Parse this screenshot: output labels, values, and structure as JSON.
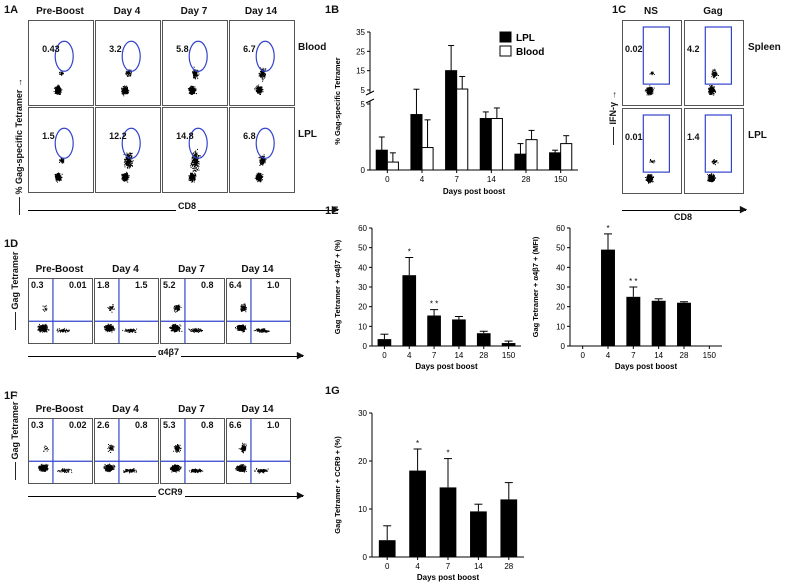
{
  "panel_1A": {
    "label": "1A",
    "columns": [
      "Pre-Boost",
      "Day 4",
      "Day 7",
      "Day 14"
    ],
    "rows": [
      {
        "name": "Blood",
        "values": [
          "0.43",
          "3.2",
          "5.8",
          "6.7"
        ]
      },
      {
        "name": "LPL",
        "values": [
          "1.5",
          "12.2",
          "14.8",
          "6.8"
        ]
      }
    ],
    "ylabel": "% Gag-specific Tetramer",
    "xlabel": "CD8"
  },
  "panel_1C": {
    "label": "1C",
    "columns": [
      "NS",
      "Gag"
    ],
    "rows": [
      {
        "name": "Spleen",
        "values": [
          "0.02",
          "4.2"
        ]
      },
      {
        "name": "LPL",
        "values": [
          "0.01",
          "1.4"
        ]
      }
    ],
    "ylabel": "IFN-γ",
    "xlabel": "CD8"
  },
  "panel_1D": {
    "label": "1D",
    "columns": [
      "Pre-Boost",
      "Day 4",
      "Day 7",
      "Day 14"
    ],
    "quadrants": [
      {
        "ul": "0.3",
        "ur": "0.01"
      },
      {
        "ul": "1.8",
        "ur": "1.5"
      },
      {
        "ul": "5.2",
        "ur": "0.8"
      },
      {
        "ul": "6.4",
        "ur": "1.0"
      }
    ],
    "ylabel": "Gag Tetramer",
    "xlabel": "α4β7"
  },
  "panel_1F": {
    "label": "1F",
    "columns": [
      "Pre-Boost",
      "Day 4",
      "Day 7",
      "Day 14"
    ],
    "quadrants": [
      {
        "ul": "0.3",
        "ur": "0.02"
      },
      {
        "ul": "2.6",
        "ur": "0.8"
      },
      {
        "ul": "5.3",
        "ur": "0.8"
      },
      {
        "ul": "6.6",
        "ur": "1.0"
      }
    ],
    "ylabel": "Gag Tetramer",
    "xlabel": "CCR9"
  },
  "chart_data": [
    {
      "id": "1B",
      "label": "1B",
      "type": "bar",
      "categories": [
        "0",
        "4",
        "7",
        "14",
        "28",
        "150"
      ],
      "series": [
        {
          "name": "LPL",
          "color": "#000000",
          "values": [
            1.5,
            4.2,
            15,
            3.9,
            1.2,
            1.3
          ],
          "errors": [
            1.0,
            1.2,
            13,
            0.5,
            0.8,
            0.2
          ]
        },
        {
          "name": "Blood",
          "color": "#ffffff",
          "values": [
            0.6,
            1.7,
            5.5,
            3.9,
            2.3,
            2.0
          ],
          "errors": [
            0.7,
            2.1,
            6.5,
            0.8,
            0.7,
            0.6
          ]
        }
      ],
      "ylabel": "% Gag-specific Tetramer",
      "xlabel": "Days post boost",
      "ylim": [
        0,
        35
      ],
      "axis_break": [
        5,
        5
      ],
      "yticks_lower": [
        "0",
        "5"
      ],
      "yticks_upper": [
        "5",
        "15",
        "25",
        "35"
      ],
      "legend_position": "top-right"
    },
    {
      "id": "1E_left",
      "label": "1E",
      "type": "bar",
      "categories": [
        "0",
        "4",
        "7",
        "14",
        "28",
        "150"
      ],
      "values": [
        3.5,
        36,
        15.5,
        13.5,
        6.5,
        1.5
      ],
      "errors": [
        2.5,
        9,
        3,
        1.5,
        1,
        1
      ],
      "annotations": [
        "",
        "*",
        "* *",
        "",
        "",
        ""
      ],
      "ylabel": "Gag Tetramer + α4β7 + (%)",
      "xlabel": "Days post boost",
      "ylim": [
        0,
        60
      ],
      "yticks": [
        "0",
        "10",
        "20",
        "30",
        "40",
        "50",
        "60"
      ]
    },
    {
      "id": "1E_right",
      "type": "bar",
      "categories": [
        "0",
        "4",
        "7",
        "14",
        "28",
        "150"
      ],
      "values": [
        0,
        49,
        25,
        23,
        22,
        0
      ],
      "errors": [
        0,
        8,
        5,
        1,
        0.5,
        0
      ],
      "annotations": [
        "",
        "*",
        "* *",
        "",
        "",
        ""
      ],
      "ylabel": "Gag Tetramer + α4β7 + (MFI)",
      "xlabel": "Days post boost",
      "ylim": [
        0,
        60
      ],
      "yticks": [
        "0",
        "10",
        "20",
        "30",
        "40",
        "50",
        "60"
      ]
    },
    {
      "id": "1G",
      "label": "1G",
      "type": "bar",
      "categories": [
        "0",
        "4",
        "7",
        "14",
        "28"
      ],
      "values": [
        3.5,
        18,
        14.5,
        9.5,
        12
      ],
      "errors": [
        3,
        4.5,
        6,
        1.5,
        3.5
      ],
      "annotations": [
        "",
        "*",
        "*",
        "",
        ""
      ],
      "ylabel": "Gag Tetramer + CCR9 + (%)",
      "xlabel": "Days post boost",
      "ylim": [
        0,
        30
      ],
      "yticks": [
        "0",
        "10",
        "20",
        "30"
      ]
    }
  ]
}
